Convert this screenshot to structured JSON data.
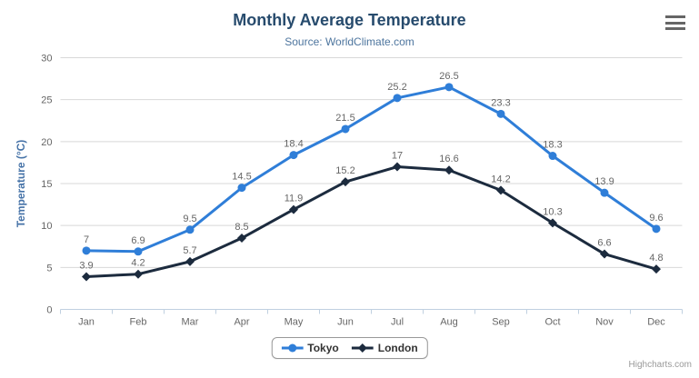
{
  "header": {
    "title": "Monthly Average Temperature",
    "subtitle": "Source: WorldClimate.com"
  },
  "menu": {
    "icon": "hamburger-menu-icon"
  },
  "credits": "Highcharts.com",
  "colors": {
    "title": "#274b6d",
    "subtitle": "#4d759e",
    "axis_title": "#4572a7",
    "tick_label": "#666666",
    "data_label": "#666666",
    "gridline": "#d8d8d8",
    "axis_line": "#c0d0e0",
    "legend_border": "#999999",
    "legend_text": "#333333",
    "credits": "#999999",
    "burger": "#666666"
  },
  "chart_data": {
    "type": "line",
    "title": "Monthly Average Temperature",
    "subtitle": "Source: WorldClimate.com",
    "categories": [
      "Jan",
      "Feb",
      "Mar",
      "Apr",
      "May",
      "Jun",
      "Jul",
      "Aug",
      "Sep",
      "Oct",
      "Nov",
      "Dec"
    ],
    "series": [
      {
        "name": "Tokyo",
        "color": "#2f7ed8",
        "marker": "circle",
        "values": [
          7,
          6.9,
          9.5,
          14.5,
          18.4,
          21.5,
          25.2,
          26.5,
          23.3,
          18.3,
          13.9,
          9.6
        ]
      },
      {
        "name": "London",
        "color": "#1c2b3e",
        "marker": "diamond",
        "values": [
          3.9,
          4.2,
          5.7,
          8.5,
          11.9,
          15.2,
          17,
          16.6,
          14.2,
          10.3,
          6.6,
          4.8
        ]
      }
    ],
    "xlabel": "",
    "ylabel": "Temperature (°C)",
    "ylim": [
      0,
      30
    ],
    "yticks": [
      0,
      5,
      10,
      15,
      20,
      25,
      30
    ],
    "grid": true,
    "legend_position": "bottom",
    "data_labels": true
  }
}
